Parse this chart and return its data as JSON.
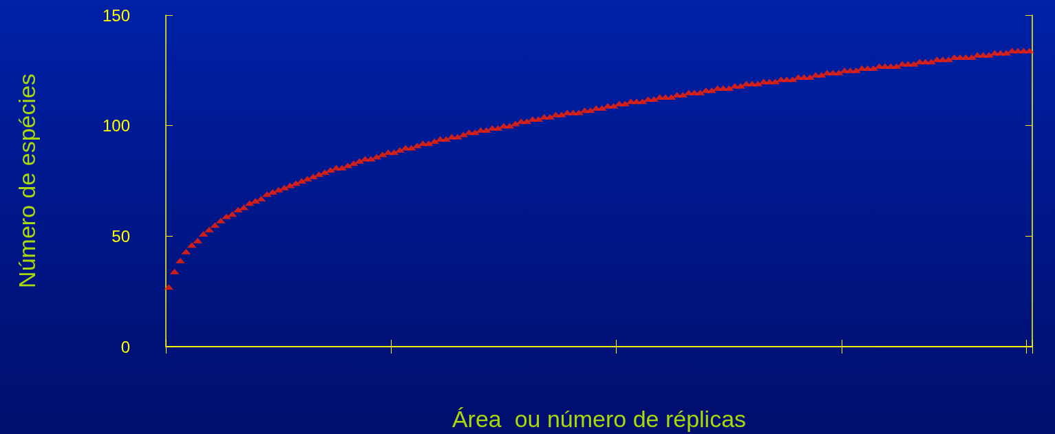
{
  "chart_data": {
    "type": "scatter",
    "xlabel": "Área  ou número de réplicas",
    "ylabel": "Número de espécies",
    "categories": [
      null,
      null,
      null,
      null,
      null,
      null,
      null,
      null,
      null,
      null,
      null,
      null,
      null,
      null,
      null,
      null,
      null,
      null,
      null,
      null,
      null,
      null,
      null,
      null,
      null,
      null,
      null,
      null,
      null,
      null,
      null,
      null,
      null,
      null,
      null,
      null,
      null,
      null,
      null,
      null,
      null,
      null,
      null,
      null,
      null,
      null,
      null,
      null,
      null,
      null,
      null,
      null,
      null,
      null,
      null,
      null,
      null,
      null,
      null,
      null,
      null,
      null,
      null,
      null,
      null,
      null,
      null,
      null,
      null,
      null,
      null,
      null,
      null,
      null,
      null,
      null,
      null,
      null,
      null,
      null,
      null,
      null,
      null,
      null,
      null,
      null,
      null,
      null,
      null,
      null,
      null,
      null,
      null,
      null,
      null,
      null,
      null,
      null,
      null,
      null,
      null,
      null,
      null,
      null,
      null,
      null,
      null,
      null,
      null,
      null,
      null,
      null,
      null,
      null,
      null,
      null,
      null,
      null,
      null,
      null,
      null,
      null,
      null,
      null,
      null,
      null,
      null,
      null,
      null,
      null,
      null,
      null,
      null,
      null,
      null,
      null,
      null,
      null,
      null,
      null,
      null,
      null,
      null,
      null,
      null,
      null,
      null,
      null,
      null,
      null
    ],
    "values": [
      27,
      34,
      39,
      43,
      46,
      48,
      51,
      53,
      55,
      57,
      59,
      60,
      62,
      63,
      65,
      66,
      67,
      69,
      70,
      71,
      72,
      73,
      74,
      75,
      76,
      77,
      78,
      79,
      80,
      81,
      81,
      82,
      83,
      84,
      85,
      85,
      86,
      87,
      88,
      88,
      89,
      90,
      90,
      91,
      92,
      92,
      93,
      94,
      94,
      95,
      95,
      96,
      97,
      97,
      98,
      98,
      99,
      99,
      100,
      100,
      101,
      102,
      102,
      103,
      103,
      104,
      104,
      105,
      105,
      106,
      106,
      106,
      107,
      107,
      108,
      108,
      109,
      109,
      110,
      110,
      111,
      111,
      111,
      112,
      112,
      113,
      113,
      113,
      114,
      114,
      115,
      115,
      115,
      116,
      116,
      117,
      117,
      117,
      118,
      118,
      119,
      119,
      119,
      120,
      120,
      120,
      121,
      121,
      121,
      122,
      122,
      122,
      123,
      123,
      124,
      124,
      124,
      125,
      125,
      125,
      126,
      126,
      126,
      127,
      127,
      127,
      127,
      128,
      128,
      128,
      129,
      129,
      129,
      130,
      130,
      130,
      131,
      131,
      131,
      131,
      132,
      132,
      132,
      133,
      133,
      133,
      134,
      134,
      134,
      134
    ],
    "color": "#ff2200",
    "marker": "triangle",
    "ylim": [
      0,
      150
    ],
    "yticks": [
      0,
      50,
      100,
      150
    ],
    "grid": false
  }
}
